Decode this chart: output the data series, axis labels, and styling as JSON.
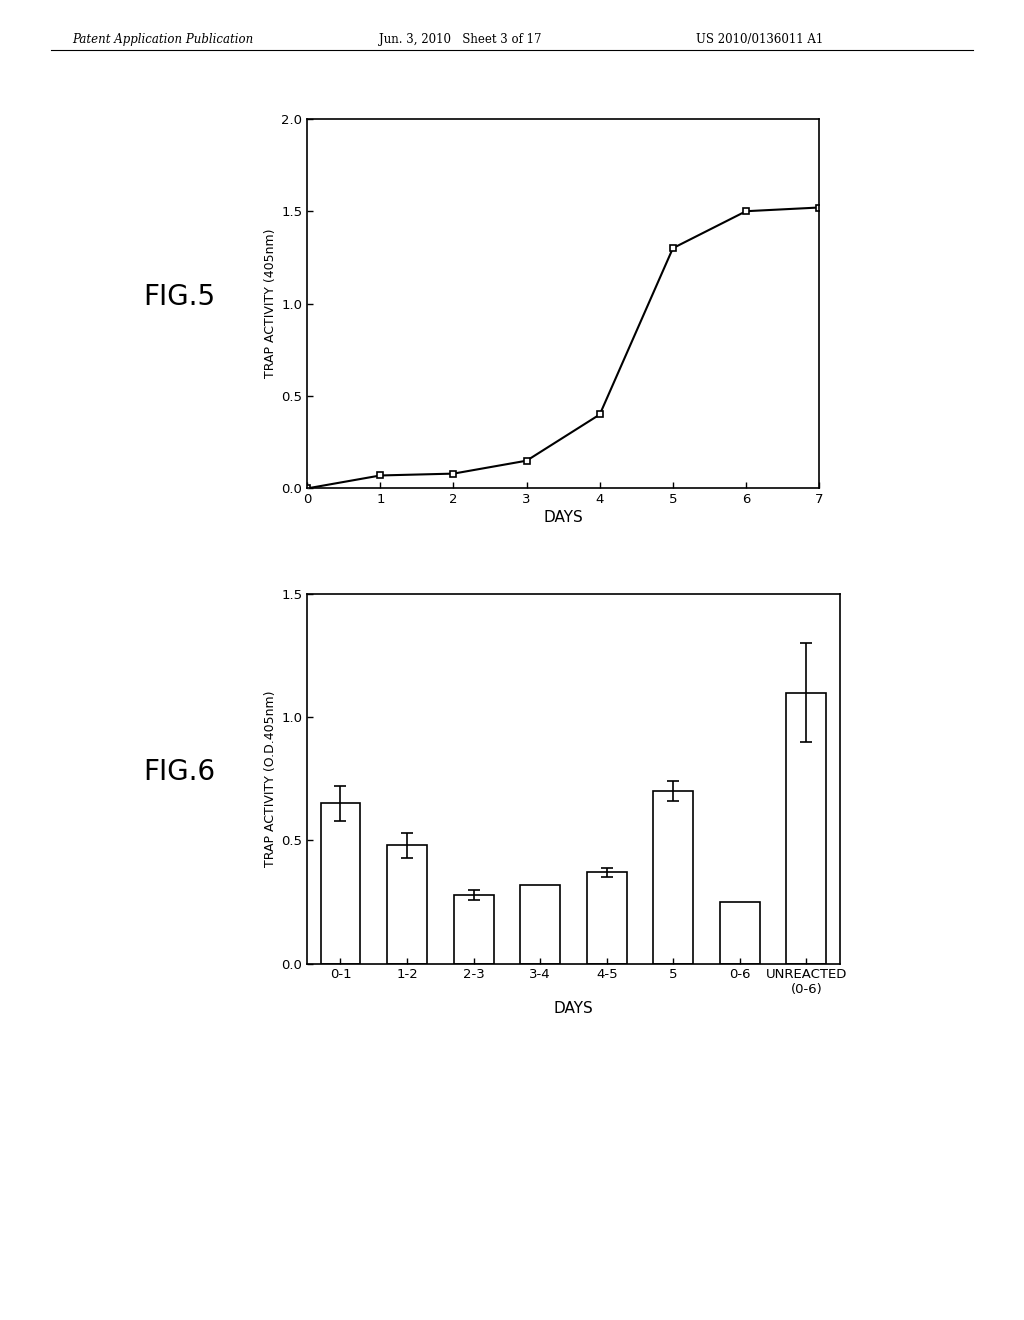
{
  "header_left": "Patent Application Publication",
  "header_mid": "Jun. 3, 2010   Sheet 3 of 17",
  "header_right": "US 2010/0136011 A1",
  "fig5_label": "FIG.5",
  "fig5_x": [
    0,
    1,
    2,
    3,
    4,
    5,
    6,
    7
  ],
  "fig5_y": [
    0.0,
    0.07,
    0.08,
    0.15,
    0.4,
    1.3,
    1.5,
    1.52
  ],
  "fig5_xlabel": "DAYS",
  "fig5_ylabel": "TRAP ACTIVITY (405nm)",
  "fig5_ylim": [
    0,
    2
  ],
  "fig5_xlim": [
    0,
    7
  ],
  "fig5_yticks": [
    0,
    0.5,
    1,
    1.5,
    2
  ],
  "fig5_xticks": [
    0,
    1,
    2,
    3,
    4,
    5,
    6,
    7
  ],
  "fig6_label": "FIG.6",
  "fig6_categories": [
    "0-1",
    "1-2",
    "2-3",
    "3-4",
    "4-5",
    "5",
    "0-6",
    "UNREACTED\n(0-6)"
  ],
  "fig6_values": [
    0.65,
    0.48,
    0.28,
    0.32,
    0.37,
    0.7,
    0.25,
    1.1
  ],
  "fig6_errors": [
    0.07,
    0.05,
    0.02,
    0.0,
    0.02,
    0.04,
    0.0,
    0.2
  ],
  "fig6_xlabel": "DAYS",
  "fig6_ylabel": "TRAP ACTIVITY (O.D.405nm)",
  "fig6_ylim": [
    0,
    1.5
  ],
  "fig6_yticks": [
    0,
    0.5,
    1,
    1.5
  ],
  "background_color": "#ffffff",
  "line_color": "#000000",
  "bar_color": "#ffffff",
  "bar_edge_color": "#000000"
}
